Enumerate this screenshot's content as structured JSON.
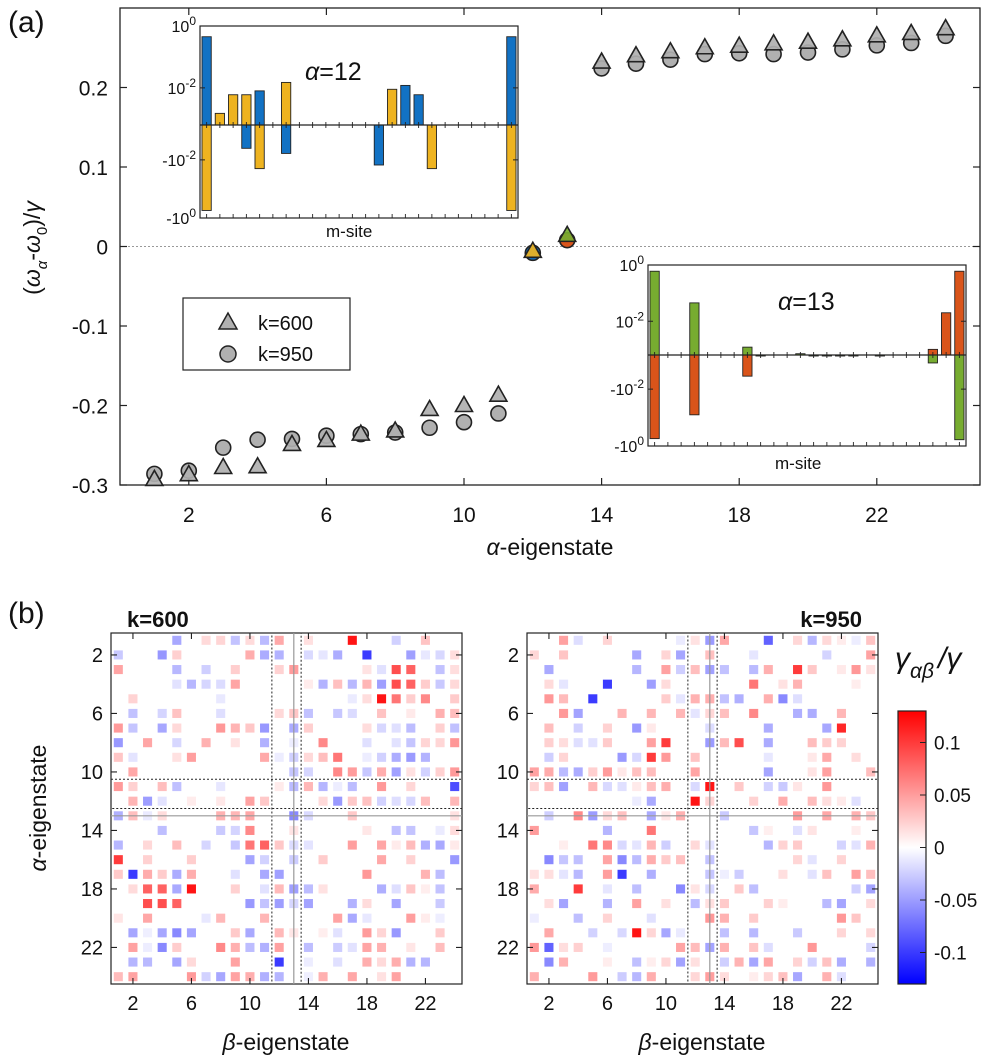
{
  "figure": {
    "panel_a_label": "(a)",
    "panel_b_label": "(b)"
  },
  "chart_data": [
    {
      "id": "main",
      "type": "scatter",
      "xlabel_greek": "α",
      "xlabel_text": "-eigenstate",
      "ylabel": "(ω_α − ω_0)/γ",
      "ylabel_parts": {
        "open": "(",
        "omega1": "ω",
        "sub1": "α",
        "minus": "-",
        "omega2": "ω",
        "sub2": "0",
        "close": ")/",
        "gamma": "γ"
      },
      "xlim": [
        0,
        25
      ],
      "ylim": [
        -0.3,
        0.3
      ],
      "xticks": [
        2,
        6,
        10,
        14,
        18,
        22
      ],
      "xtick_labels": [
        "2",
        "6",
        "10",
        "14",
        "18",
        "22"
      ],
      "yticks": [
        -0.3,
        -0.2,
        -0.1,
        0,
        0.1,
        0.2
      ],
      "ytick_labels": [
        "-0.3",
        "-0.2",
        "-0.1",
        "0",
        "0.1",
        "0.2"
      ],
      "zero_line": true,
      "legend": {
        "placement": "lower-left",
        "entries": [
          "k=600",
          "k=950"
        ]
      },
      "highlight_colors": {
        "blue": "#1272c4",
        "yellow": "#eeb320",
        "orange": "#d9541a",
        "green": "#77ac30"
      },
      "series": [
        {
          "name": "k=600",
          "marker": "triangle",
          "x": [
            1,
            2,
            3,
            4,
            5,
            6,
            7,
            8,
            9,
            10,
            11,
            12,
            13,
            14,
            15,
            16,
            17,
            18,
            19,
            20,
            21,
            22,
            23,
            24
          ],
          "y": [
            -0.293,
            -0.287,
            -0.278,
            -0.277,
            -0.249,
            -0.244,
            -0.236,
            -0.232,
            -0.205,
            -0.2,
            -0.187,
            -0.006,
            0.014,
            0.232,
            0.24,
            0.245,
            0.25,
            0.252,
            0.255,
            0.257,
            0.26,
            0.265,
            0.268,
            0.274
          ],
          "fills": {
            "12": "#eeb320",
            "13": "#77ac30"
          }
        },
        {
          "name": "k=950",
          "marker": "circle",
          "x": [
            1,
            2,
            3,
            4,
            5,
            6,
            7,
            8,
            9,
            10,
            11,
            12,
            13,
            14,
            15,
            16,
            17,
            18,
            19,
            20,
            21,
            22,
            23,
            24
          ],
          "y": [
            -0.286,
            -0.282,
            -0.253,
            -0.243,
            -0.242,
            -0.238,
            -0.236,
            -0.234,
            -0.228,
            -0.221,
            -0.21,
            -0.008,
            0.008,
            0.224,
            0.23,
            0.235,
            0.242,
            0.243,
            0.242,
            0.244,
            0.248,
            0.253,
            0.256,
            0.265
          ],
          "fills": {
            "12": "#1272c4",
            "13": "#d9541a"
          }
        }
      ]
    },
    {
      "id": "inset12",
      "type": "bar",
      "title_greek": "α",
      "title_text": "=12",
      "xlabel": "m-site",
      "ytick_labels_top": [
        "10^0",
        "10^-2"
      ],
      "ytick_labels_bottom": [
        "-10^-2",
        "-10^0"
      ],
      "yscale": "symlog",
      "sites": 24,
      "series": [
        {
          "name": "k=950",
          "color": "#1272c4",
          "sites": [
            1,
            4,
            5,
            7,
            14,
            16,
            17,
            24
          ],
          "values": [
            0.45,
            -0.004,
            0.008,
            -0.006,
            -0.015,
            0.012,
            0.006,
            0.45
          ]
        },
        {
          "name": "k=600",
          "color": "#eeb320",
          "sites": [
            1,
            2,
            3,
            4,
            5,
            7,
            15,
            18,
            24
          ],
          "values": [
            -0.55,
            0.0015,
            0.006,
            0.006,
            -0.02,
            0.015,
            0.009,
            -0.02,
            -0.55
          ]
        }
      ]
    },
    {
      "id": "inset13",
      "type": "bar",
      "title_greek": "α",
      "title_text": "=13",
      "xlabel": "m-site",
      "ytick_labels_top": [
        "10^0",
        "10^-2"
      ],
      "ytick_labels_bottom": [
        "-10^-2",
        "-10^0"
      ],
      "yscale": "symlog",
      "sites": 24,
      "series": [
        {
          "name": "k=600",
          "color": "#77ac30",
          "sites": [
            1,
            4,
            8,
            9,
            12,
            13,
            14,
            15,
            16,
            18,
            22,
            24
          ],
          "values": [
            0.6,
            0.045,
            0.0012,
            0.0004,
            0.0007,
            0.0005,
            -0.0004,
            -0.0004,
            0.0003,
            0.0003,
            -0.0012,
            -0.6
          ]
        },
        {
          "name": "k=950",
          "color": "#d9541a",
          "sites": [
            1,
            4,
            8,
            22,
            23,
            24
          ],
          "values": [
            -0.55,
            -0.08,
            -0.0035,
            0.001,
            0.02,
            0.6
          ]
        }
      ]
    },
    {
      "id": "heatmap600",
      "type": "heatmap",
      "title": "k=600",
      "xlabel_greek": "β",
      "xlabel_text": "-eigenstate",
      "ylabel_greek": "α",
      "ylabel_text": "-eigenstate",
      "size": 24,
      "xtick_labels": [
        "2",
        "6",
        "10",
        "14",
        "18",
        "22"
      ],
      "ytick_labels": [
        "2",
        "6",
        "10",
        "14",
        "18",
        "22"
      ],
      "strong_cells": [
        [
          1,
          17,
          0.12
        ],
        [
          2,
          18,
          -0.1
        ],
        [
          3,
          20,
          0.09
        ],
        [
          3,
          21,
          0.08
        ],
        [
          4,
          20,
          0.09
        ],
        [
          4,
          21,
          0.08
        ],
        [
          5,
          19,
          0.12
        ],
        [
          5,
          20,
          0.07
        ],
        [
          5,
          22,
          0.06
        ],
        [
          8,
          15,
          0.06
        ],
        [
          9,
          16,
          0.07
        ],
        [
          10,
          16,
          0.06
        ],
        [
          10,
          17,
          0.05
        ],
        [
          11,
          24,
          -0.09
        ],
        [
          12,
          3,
          -0.05
        ],
        [
          13,
          13,
          -0.06
        ],
        [
          14,
          10,
          0.06
        ],
        [
          15,
          10,
          0.07
        ],
        [
          15,
          11,
          0.08
        ],
        [
          16,
          1,
          0.1
        ],
        [
          17,
          2,
          -0.1
        ],
        [
          18,
          3,
          0.08
        ],
        [
          18,
          4,
          0.08
        ],
        [
          18,
          6,
          0.12
        ],
        [
          19,
          3,
          0.09
        ],
        [
          19,
          4,
          0.09
        ],
        [
          19,
          5,
          0.08
        ],
        [
          21,
          5,
          -0.06
        ],
        [
          22,
          4,
          -0.06
        ],
        [
          22,
          8,
          0.06
        ],
        [
          23,
          12,
          -0.1
        ]
      ]
    },
    {
      "id": "heatmap950",
      "type": "heatmap",
      "title": "k=950",
      "xlabel_greek": "β",
      "xlabel_text": "-eigenstate",
      "ylabel_greek": "α",
      "ylabel_text": "-eigenstate",
      "size": 24,
      "xtick_labels": [
        "2",
        "6",
        "10",
        "14",
        "18",
        "22"
      ],
      "ytick_labels": [
        "2",
        "6",
        "10",
        "14",
        "18",
        "22"
      ],
      "strong_cells": [
        [
          1,
          17,
          -0.08
        ],
        [
          3,
          19,
          0.1
        ],
        [
          4,
          6,
          -0.1
        ],
        [
          4,
          16,
          0.07
        ],
        [
          5,
          5,
          -0.1
        ],
        [
          5,
          18,
          -0.06
        ],
        [
          6,
          16,
          0.06
        ],
        [
          7,
          22,
          0.11
        ],
        [
          8,
          10,
          0.1
        ],
        [
          8,
          15,
          0.09
        ],
        [
          9,
          9,
          0.1
        ],
        [
          11,
          13,
          0.12
        ],
        [
          12,
          12,
          0.12
        ],
        [
          13,
          4,
          0.06
        ],
        [
          14,
          9,
          0.07
        ],
        [
          15,
          5,
          0.07
        ],
        [
          15,
          6,
          0.06
        ],
        [
          16,
          2,
          -0.06
        ],
        [
          16,
          7,
          -0.06
        ],
        [
          17,
          7,
          -0.1
        ],
        [
          18,
          4,
          0.1
        ],
        [
          18,
          11,
          -0.06
        ],
        [
          21,
          8,
          0.12
        ],
        [
          22,
          2,
          -0.08
        ],
        [
          23,
          2,
          -0.06
        ]
      ]
    },
    {
      "id": "colorbar",
      "type": "heatmap",
      "title_greek": "γ",
      "title_sub": "αβ",
      "title_tail": "/γ",
      "range": [
        -0.13,
        0.13
      ],
      "ticks": [
        0.1,
        0.05,
        0,
        -0.05,
        -0.1
      ],
      "tick_labels": [
        "0.1",
        "0.05",
        "0",
        "-0.05",
        "-0.1"
      ]
    }
  ]
}
